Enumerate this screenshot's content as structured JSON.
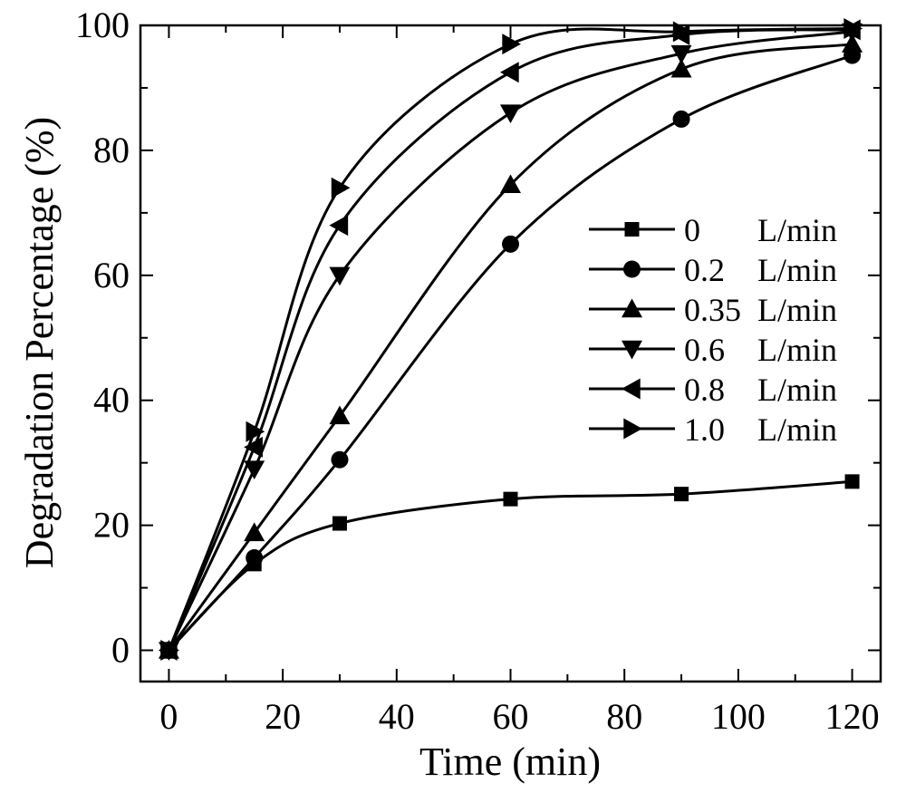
{
  "chart_data": {
    "type": "line",
    "xlabel": "Time (min)",
    "ylabel": "Degradation Percentage (%)",
    "xlim": [
      -5,
      125
    ],
    "ylim": [
      -5,
      100
    ],
    "x_ticks": [
      0,
      20,
      40,
      60,
      80,
      100,
      120
    ],
    "y_ticks": [
      0,
      20,
      40,
      60,
      80,
      100
    ],
    "x": [
      0,
      15,
      30,
      60,
      90,
      120
    ],
    "legend_position": "right",
    "series": [
      {
        "name": "0",
        "unit": "L/min",
        "marker": "square",
        "values": [
          0,
          13.8,
          20.3,
          24.2,
          25.0,
          27.0
        ]
      },
      {
        "name": "0.2",
        "unit": "L/min",
        "marker": "circle",
        "values": [
          0,
          14.8,
          30.5,
          65.0,
          85.0,
          95.2
        ]
      },
      {
        "name": "0.35",
        "unit": "L/min",
        "marker": "triangle-up",
        "values": [
          0,
          18.8,
          37.5,
          74.5,
          93.0,
          97.0
        ]
      },
      {
        "name": "0.6",
        "unit": "L/min",
        "marker": "triangle-down",
        "values": [
          0,
          29.0,
          60.0,
          86.0,
          95.5,
          99.0
        ]
      },
      {
        "name": "0.8",
        "unit": "L/min",
        "marker": "triangle-left",
        "values": [
          0,
          32.5,
          68.0,
          92.5,
          98.5,
          99.3
        ]
      },
      {
        "name": "1.0",
        "unit": "L/min",
        "marker": "triangle-right",
        "values": [
          0,
          35.0,
          74.0,
          97.0,
          99.0,
          99.5
        ]
      }
    ]
  }
}
